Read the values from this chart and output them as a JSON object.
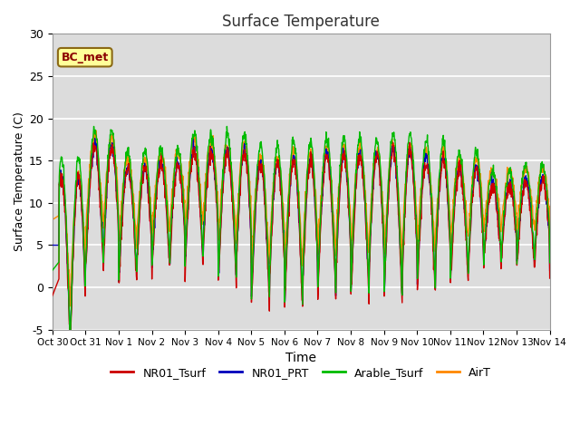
{
  "title": "Surface Temperature",
  "xlabel": "Time",
  "ylabel": "Surface Temperature (C)",
  "ylim": [
    -5,
    30
  ],
  "annotation": "BC_met",
  "bg_color": "#dcdcdc",
  "legend": [
    "NR01_Tsurf",
    "NR01_PRT",
    "Arable_Tsurf",
    "AirT"
  ],
  "line_colors": [
    "#cc0000",
    "#0000bb",
    "#00bb00",
    "#ff8800"
  ],
  "xtick_labels": [
    "Oct 30",
    "Oct 31",
    "Nov 1",
    "Nov 2",
    "Nov 3",
    "Nov 4",
    "Nov 5",
    "Nov 6",
    "Nov 7",
    "Nov 8",
    "Nov 9",
    "Nov 10",
    "Nov 11",
    "Nov 12",
    "Nov 13",
    "Nov 14"
  ],
  "xtick_positions": [
    0,
    1,
    2,
    3,
    4,
    5,
    6,
    7,
    8,
    9,
    10,
    11,
    12,
    13,
    14,
    15
  ],
  "ytick_labels": [
    "-5",
    "0",
    "5",
    "10",
    "15",
    "20",
    "25",
    "30"
  ],
  "ytick_positions": [
    -5,
    0,
    5,
    10,
    15,
    20,
    25,
    30
  ]
}
